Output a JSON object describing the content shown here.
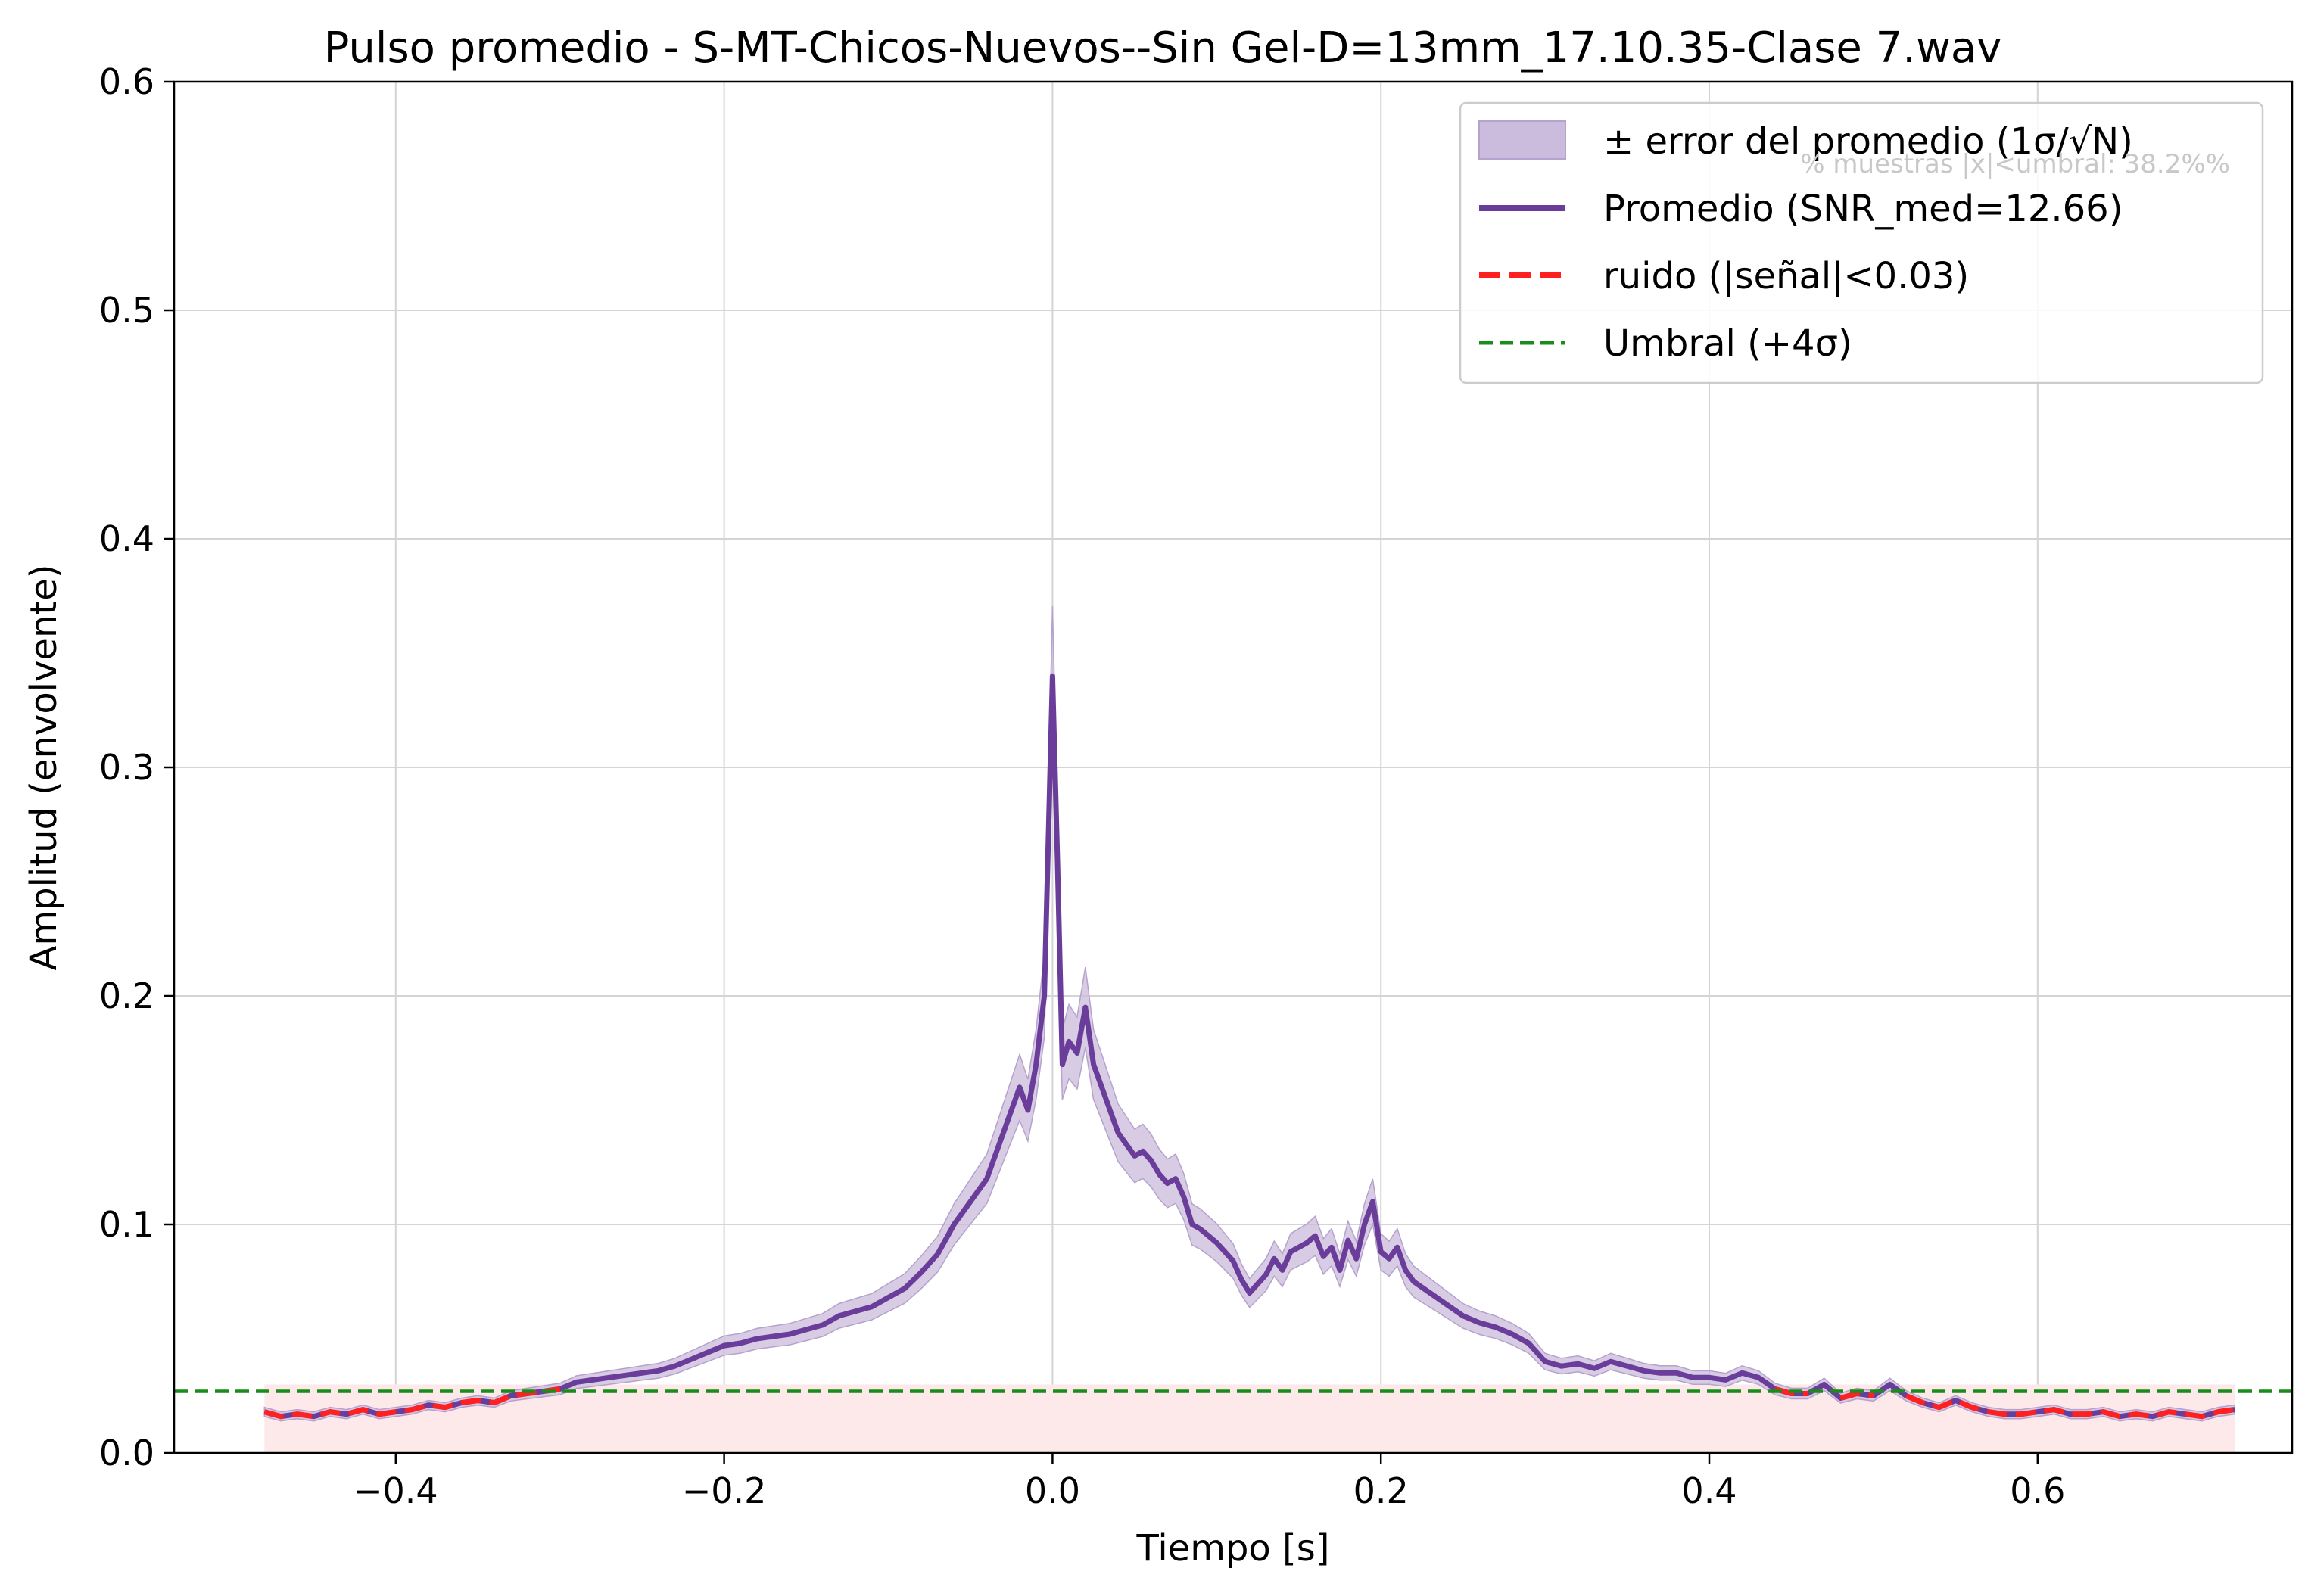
{
  "chart_data": {
    "type": "line",
    "title": "Pulso promedio - S-MT-Chicos-Nuevos--Sin Gel-D=13mm_17.10.35-Clase 7.wav",
    "xlabel": "Tiempo [s]",
    "ylabel": "Amplitud (envolvente)",
    "xlim": [
      -0.535,
      0.755
    ],
    "ylim": [
      0.0,
      0.6
    ],
    "xticks": [
      -0.4,
      -0.2,
      0.0,
      0.2,
      0.4,
      0.6
    ],
    "xtick_labels": [
      "−0.4",
      "−0.2",
      "0.0",
      "0.2",
      "0.4",
      "0.6"
    ],
    "yticks": [
      0.0,
      0.1,
      0.2,
      0.3,
      0.4,
      0.5,
      0.6
    ],
    "ytick_labels": [
      "0.0",
      "0.1",
      "0.2",
      "0.3",
      "0.4",
      "0.5",
      "0.6"
    ],
    "grid": true,
    "legend_position": "top-right",
    "legend": [
      {
        "label": "± error del promedio (1σ/√N)",
        "kind": "band"
      },
      {
        "label": "Promedio (SNR_med=12.66)",
        "kind": "line"
      },
      {
        "label": "ruido (|señal|<0.03)",
        "kind": "dashed-red"
      },
      {
        "label": "Umbral (+4σ)",
        "kind": "dashed-green"
      }
    ],
    "annotation": "% muestras |x|<umbral: 38.2%%",
    "threshold": 0.027,
    "noise_level": 0.03,
    "colors": {
      "mean": "#6a3d9a",
      "band": "#cbbbdc",
      "noise": "#ff2020",
      "threshold": "#1a8c1a",
      "noise_fill": "#fde9ea"
    },
    "series": [
      {
        "name": "Promedio (SNR_med=12.66)",
        "x": [
          -0.48,
          -0.47,
          -0.46,
          -0.45,
          -0.44,
          -0.43,
          -0.42,
          -0.41,
          -0.4,
          -0.39,
          -0.38,
          -0.37,
          -0.36,
          -0.35,
          -0.34,
          -0.33,
          -0.32,
          -0.31,
          -0.3,
          -0.29,
          -0.28,
          -0.27,
          -0.26,
          -0.25,
          -0.24,
          -0.23,
          -0.22,
          -0.21,
          -0.2,
          -0.19,
          -0.18,
          -0.17,
          -0.16,
          -0.15,
          -0.14,
          -0.13,
          -0.12,
          -0.11,
          -0.1,
          -0.09,
          -0.08,
          -0.07,
          -0.06,
          -0.05,
          -0.04,
          -0.03,
          -0.02,
          -0.015,
          -0.01,
          -0.005,
          0.0,
          0.003,
          0.006,
          0.01,
          0.015,
          0.02,
          0.025,
          0.03,
          0.035,
          0.04,
          0.045,
          0.05,
          0.055,
          0.06,
          0.065,
          0.07,
          0.075,
          0.08,
          0.085,
          0.09,
          0.095,
          0.1,
          0.105,
          0.11,
          0.115,
          0.12,
          0.125,
          0.13,
          0.135,
          0.14,
          0.145,
          0.15,
          0.155,
          0.16,
          0.165,
          0.17,
          0.175,
          0.18,
          0.185,
          0.19,
          0.195,
          0.2,
          0.205,
          0.21,
          0.215,
          0.22,
          0.23,
          0.24,
          0.25,
          0.26,
          0.27,
          0.28,
          0.29,
          0.3,
          0.31,
          0.32,
          0.33,
          0.34,
          0.35,
          0.36,
          0.37,
          0.38,
          0.39,
          0.4,
          0.41,
          0.42,
          0.43,
          0.44,
          0.45,
          0.46,
          0.47,
          0.48,
          0.49,
          0.5,
          0.51,
          0.52,
          0.53,
          0.54,
          0.55,
          0.56,
          0.57,
          0.58,
          0.59,
          0.6,
          0.61,
          0.62,
          0.63,
          0.64,
          0.65,
          0.66,
          0.67,
          0.68,
          0.69,
          0.7,
          0.71,
          0.72
        ],
        "y": [
          0.018,
          0.016,
          0.017,
          0.016,
          0.018,
          0.017,
          0.019,
          0.017,
          0.018,
          0.019,
          0.021,
          0.02,
          0.022,
          0.023,
          0.022,
          0.025,
          0.026,
          0.027,
          0.028,
          0.031,
          0.032,
          0.033,
          0.034,
          0.035,
          0.036,
          0.038,
          0.041,
          0.044,
          0.047,
          0.048,
          0.05,
          0.051,
          0.052,
          0.054,
          0.056,
          0.06,
          0.062,
          0.064,
          0.068,
          0.072,
          0.079,
          0.087,
          0.1,
          0.11,
          0.12,
          0.14,
          0.16,
          0.15,
          0.17,
          0.2,
          0.34,
          0.26,
          0.17,
          0.18,
          0.175,
          0.195,
          0.17,
          0.16,
          0.15,
          0.14,
          0.135,
          0.13,
          0.132,
          0.128,
          0.122,
          0.118,
          0.12,
          0.112,
          0.1,
          0.098,
          0.095,
          0.092,
          0.088,
          0.084,
          0.076,
          0.07,
          0.074,
          0.078,
          0.085,
          0.08,
          0.088,
          0.09,
          0.092,
          0.095,
          0.086,
          0.09,
          0.08,
          0.093,
          0.085,
          0.1,
          0.11,
          0.088,
          0.085,
          0.09,
          0.08,
          0.075,
          0.07,
          0.065,
          0.06,
          0.057,
          0.055,
          0.052,
          0.048,
          0.04,
          0.038,
          0.039,
          0.037,
          0.04,
          0.038,
          0.036,
          0.035,
          0.035,
          0.033,
          0.033,
          0.032,
          0.035,
          0.033,
          0.028,
          0.026,
          0.026,
          0.03,
          0.024,
          0.026,
          0.025,
          0.03,
          0.025,
          0.022,
          0.02,
          0.023,
          0.02,
          0.018,
          0.017,
          0.017,
          0.018,
          0.019,
          0.017,
          0.017,
          0.018,
          0.016,
          0.017,
          0.016,
          0.018,
          0.017,
          0.016,
          0.018,
          0.019
        ]
      }
    ]
  }
}
